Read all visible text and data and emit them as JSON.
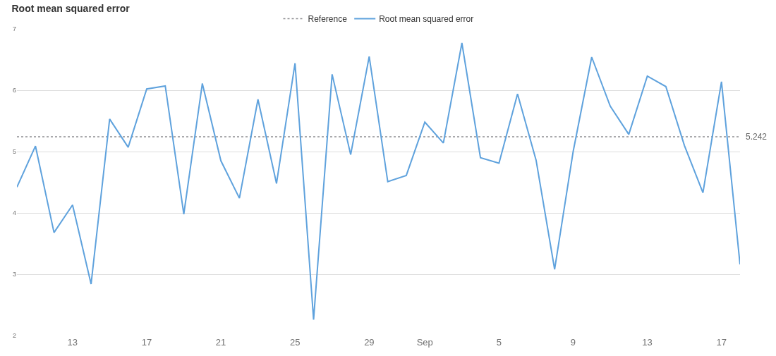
{
  "chart_data": {
    "type": "line",
    "title": "Root mean squared error",
    "x": [
      "--08-10",
      "--08-11",
      "--08-12",
      "--08-13",
      "--08-14",
      "--08-15",
      "--08-16",
      "--08-17",
      "--08-18",
      "--08-19",
      "--08-20",
      "--08-21",
      "--08-22",
      "--08-23",
      "--08-24",
      "--08-25",
      "--08-26",
      "--08-27",
      "--08-28",
      "--08-29",
      "--08-30",
      "--08-31",
      "--09-01",
      "--09-02",
      "--09-03",
      "--09-04",
      "--09-05",
      "--09-06",
      "--09-07",
      "--09-08",
      "--09-09",
      "--09-10",
      "--09-11",
      "--09-12",
      "--09-13",
      "--09-14",
      "--09-15",
      "--09-16",
      "--09-17",
      "--09-18"
    ],
    "series": [
      {
        "name": "Reference",
        "color": "#8e8e93",
        "line_style": "dotted",
        "x": [
          "--08-10",
          "--09-18"
        ],
        "values": [
          5.242,
          5.242
        ]
      },
      {
        "name": "Root mean squared error",
        "color": "#5fa2dd",
        "line_style": "solid",
        "values": [
          4.42,
          5.09,
          3.68,
          4.13,
          2.84,
          5.53,
          5.07,
          6.02,
          6.07,
          3.98,
          6.11,
          4.85,
          4.24,
          5.85,
          4.48,
          6.44,
          2.26,
          6.26,
          4.95,
          6.55,
          4.51,
          4.61,
          5.48,
          5.14,
          6.77,
          4.9,
          4.81,
          5.94,
          4.86,
          3.08,
          5.0,
          6.54,
          5.74,
          5.28,
          6.23,
          6.06,
          5.1,
          4.33,
          6.14,
          3.16
        ]
      }
    ],
    "annotations": [
      {
        "text": "5.242",
        "x": "--09-18",
        "y": 5.242
      }
    ],
    "xlim": [
      "--08-10",
      "--09-18"
    ],
    "xticks": [
      {
        "value": "--08-13",
        "label": "13"
      },
      {
        "value": "--08-17",
        "label": "17"
      },
      {
        "value": "--08-21",
        "label": "21"
      },
      {
        "value": "--08-25",
        "label": "25"
      },
      {
        "value": "--08-29",
        "label": "29"
      },
      {
        "value": "--09-01",
        "label": "Sep"
      },
      {
        "value": "--09-05",
        "label": "5"
      },
      {
        "value": "--09-09",
        "label": "9"
      },
      {
        "value": "--09-13",
        "label": "13"
      },
      {
        "value": "--09-17",
        "label": "17"
      }
    ],
    "ylim": [
      2,
      7
    ],
    "yticks": [
      2,
      3,
      4,
      5,
      6,
      7
    ],
    "grid": "y",
    "legend": "top",
    "marker": "none"
  }
}
